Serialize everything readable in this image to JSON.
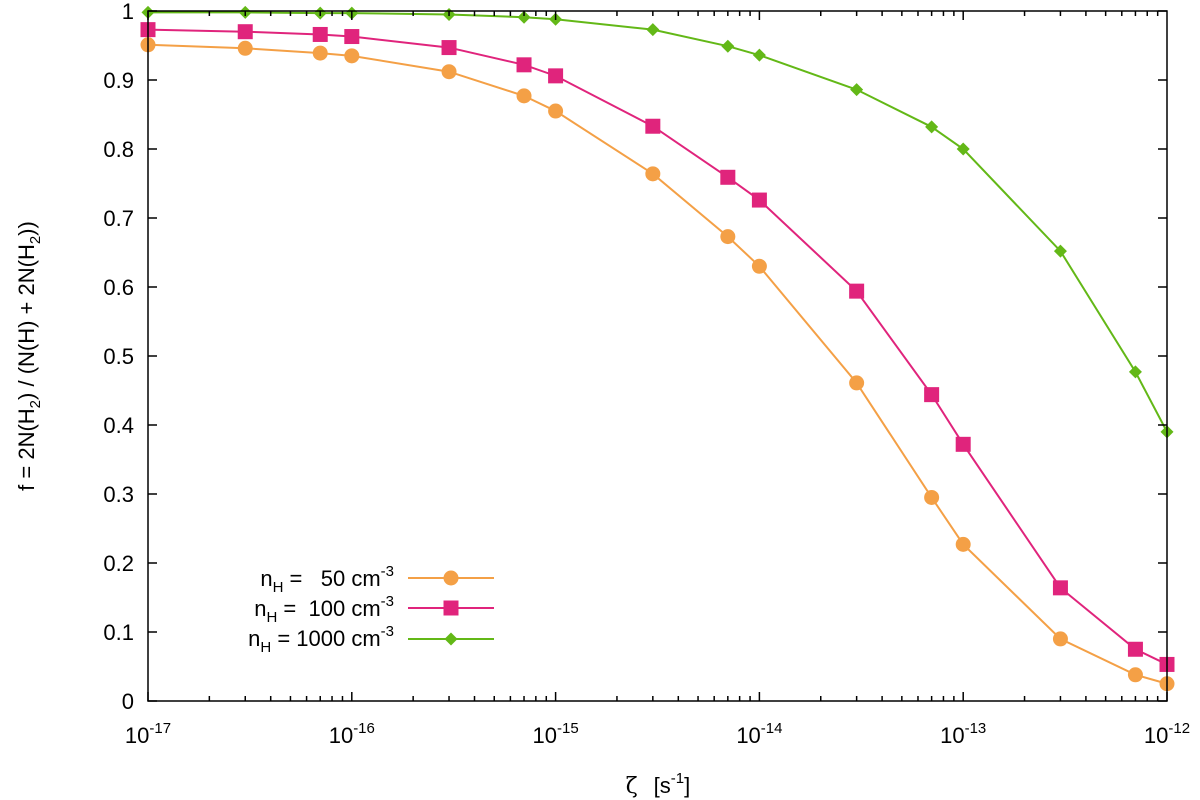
{
  "chart_data": {
    "type": "line",
    "x_scale": "log",
    "xlim": [
      1e-17,
      1e-12
    ],
    "ylim": [
      0,
      1
    ],
    "grid": false,
    "legend_position": "bottom-left",
    "x_tick_values": [
      1e-17,
      1e-16,
      1e-15,
      1e-14,
      1e-13,
      1e-12
    ],
    "x_tick_labels": [
      {
        "base": "10",
        "exp": "-17"
      },
      {
        "base": "10",
        "exp": "-16"
      },
      {
        "base": "10",
        "exp": "-15"
      },
      {
        "base": "10",
        "exp": "-14"
      },
      {
        "base": "10",
        "exp": "-13"
      },
      {
        "base": "10",
        "exp": "-12"
      }
    ],
    "y_tick_values": [
      0,
      0.1,
      0.2,
      0.3,
      0.4,
      0.5,
      0.6,
      0.7,
      0.8,
      0.9,
      1
    ],
    "y_tick_labels": [
      "0",
      "0.1",
      "0.2",
      "0.3",
      "0.4",
      "0.5",
      "0.6",
      "0.7",
      "0.8",
      "0.9",
      "1"
    ],
    "xlabel": {
      "symbol": "ζ",
      "unit_open": "[s",
      "unit_exp": "-1",
      "unit_close": "]"
    },
    "ylabel": {
      "p1": "f = 2N(H",
      "s1": "2",
      "p2": ") / (N(H) + 2N(H",
      "s2": "2",
      "p3": "))"
    },
    "x": [
      1e-17,
      3e-17,
      7e-17,
      1e-16,
      3e-16,
      7e-16,
      1e-15,
      3e-15,
      7e-15,
      1e-14,
      3e-14,
      7e-14,
      1e-13,
      3e-13,
      7e-13,
      1e-12
    ],
    "series": [
      {
        "name": "n_H = 50 cm^-3",
        "legend": {
          "n": "n",
          "sub": "H",
          "mid": " =   50 cm",
          "exp": "-3"
        },
        "color": "#f4a046",
        "marker": "circle",
        "values": [
          0.951,
          0.946,
          0.939,
          0.935,
          0.912,
          0.877,
          0.855,
          0.764,
          0.673,
          0.63,
          0.461,
          0.295,
          0.227,
          0.09,
          0.038,
          0.025
        ]
      },
      {
        "name": "n_H = 100 cm^-3",
        "legend": {
          "n": "n",
          "sub": "H",
          "mid": " =  100 cm",
          "exp": "-3"
        },
        "color": "#e0247c",
        "marker": "square",
        "values": [
          0.973,
          0.97,
          0.966,
          0.963,
          0.947,
          0.922,
          0.906,
          0.833,
          0.759,
          0.726,
          0.594,
          0.444,
          0.372,
          0.164,
          0.075,
          0.053
        ]
      },
      {
        "name": "n_H = 1000 cm^-3",
        "legend": {
          "n": "n",
          "sub": "H",
          "mid": " = 1000 cm",
          "exp": "-3"
        },
        "color": "#63b817",
        "marker": "diamond",
        "values": [
          0.998,
          0.998,
          0.997,
          0.997,
          0.995,
          0.991,
          0.988,
          0.973,
          0.949,
          0.936,
          0.886,
          0.832,
          0.8,
          0.652,
          0.477,
          0.39
        ]
      }
    ]
  }
}
